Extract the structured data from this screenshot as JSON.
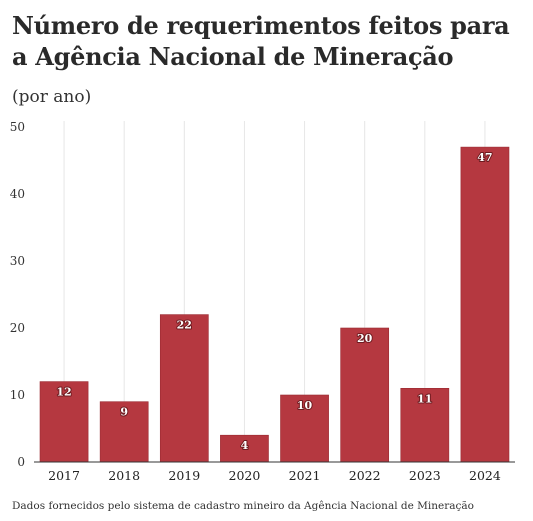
{
  "title": "Número de requerimentos feitos para a Agência Nacional de Mineração",
  "subtitle": "(por ano)",
  "source": "Dados fornecidos pelo sistema de cadastro mineiro da Agência Nacional de Mineração",
  "colors": {
    "bar": "#b53840",
    "grid": "#e6e6e6",
    "axis": "#333333"
  },
  "chart_data": {
    "type": "bar",
    "categories": [
      "2017",
      "2018",
      "2019",
      "2020",
      "2021",
      "2022",
      "2023",
      "2024"
    ],
    "values": [
      12,
      9,
      22,
      4,
      10,
      20,
      11,
      47
    ],
    "ylim": [
      0,
      50
    ],
    "yticks": [
      0,
      10,
      20,
      30,
      40,
      50
    ],
    "grid": true,
    "legend": "none",
    "data_labels": true
  }
}
